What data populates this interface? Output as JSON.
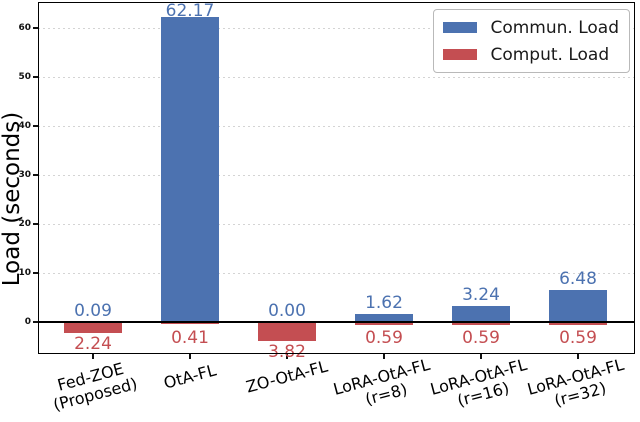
{
  "chart_data": {
    "type": "bar",
    "title": "",
    "ylabel": "Load (seconds)",
    "xlabel": "",
    "categories": [
      [
        "Fed-ZOE",
        "(Proposed)"
      ],
      [
        "OtA-FL"
      ],
      [
        "ZO-OtA-FL"
      ],
      [
        "LoRA-OtA-FL",
        "(r=8)"
      ],
      [
        "LoRA-OtA-FL",
        "(r=16)"
      ],
      [
        "LoRA-OtA-FL",
        "(r=32)"
      ]
    ],
    "series": [
      {
        "name": "Commun. Load",
        "color": "#4C72B0",
        "direction": "up",
        "values": [
          0.09,
          62.17,
          0.0,
          1.62,
          3.24,
          6.48
        ],
        "labels": [
          "0.09",
          "62.17",
          "0.00",
          "1.62",
          "3.24",
          "6.48"
        ]
      },
      {
        "name": "Comput. Load",
        "color": "#C44E52",
        "direction": "down",
        "values": [
          2.24,
          0.41,
          3.82,
          0.59,
          0.59,
          0.59
        ],
        "labels": [
          "2.24",
          "0.41",
          "3.82",
          "0.59",
          "0.59",
          "0.59"
        ]
      }
    ],
    "yticks": [
      0,
      10,
      20,
      30,
      40,
      50,
      60
    ],
    "ylim": [
      -6.53,
      65.31
    ],
    "grid": "horizontal-dashed",
    "gridline_color": "#d4d4d4",
    "axis_color": "#000000",
    "legend_position": "upper-right"
  }
}
